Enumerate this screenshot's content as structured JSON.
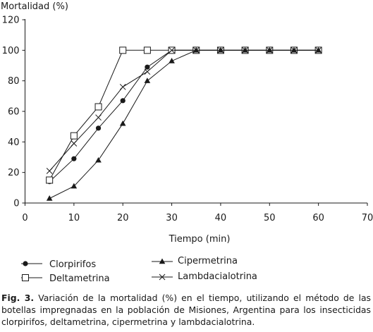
{
  "chart_data": {
    "type": "line",
    "ylabel": "Mortalidad (%)",
    "xlabel": "Tiempo (min)",
    "xlim": [
      0,
      70
    ],
    "ylim": [
      0,
      120
    ],
    "xticks": [
      0,
      10,
      20,
      30,
      40,
      50,
      60,
      70
    ],
    "yticks": [
      0,
      20,
      40,
      60,
      80,
      100,
      120
    ],
    "grid": false,
    "legend_position": "bottom",
    "series": [
      {
        "name": "Clorpirifos",
        "marker": "filled-circle",
        "x": [
          5,
          10,
          15,
          20,
          25,
          30,
          35,
          40,
          45,
          50,
          55,
          60
        ],
        "y": [
          14,
          29,
          49,
          67,
          89,
          100,
          100,
          100,
          100,
          100,
          100,
          100
        ]
      },
      {
        "name": "Deltametrina",
        "marker": "open-square",
        "x": [
          5,
          10,
          15,
          20,
          25,
          30,
          35,
          40,
          45,
          50,
          55,
          60
        ],
        "y": [
          15,
          44,
          63,
          100,
          100,
          100,
          100,
          100,
          100,
          100,
          100,
          100
        ]
      },
      {
        "name": "Cipermetrina",
        "marker": "filled-triangle",
        "x": [
          5,
          10,
          15,
          20,
          25,
          30,
          35,
          40,
          45,
          50,
          55,
          60
        ],
        "y": [
          3,
          11,
          28,
          52,
          80,
          93,
          100,
          100,
          100,
          100,
          100,
          100
        ]
      },
      {
        "name": "Lambdacialotrina",
        "marker": "x",
        "x": [
          5,
          10,
          15,
          20,
          25,
          30,
          35,
          40,
          45,
          50,
          55,
          60
        ],
        "y": [
          21,
          39,
          56,
          76,
          86,
          100,
          100,
          100,
          100,
          100,
          100,
          100
        ]
      }
    ]
  },
  "caption": {
    "label": "Fig. 3.",
    "text": " Variación de la mortalidad (%) en el tiempo, utilizando el método de las botellas impregnadas en la población de Misiones, Argentina para los insecticidas clorpirifos, deltametrina, cipermetrina y lambdacialotrina."
  }
}
